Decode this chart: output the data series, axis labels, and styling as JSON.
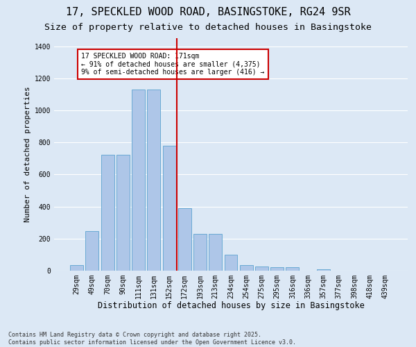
{
  "title1": "17, SPECKLED WOOD ROAD, BASINGSTOKE, RG24 9SR",
  "title2": "Size of property relative to detached houses in Basingstoke",
  "xlabel": "Distribution of detached houses by size in Basingstoke",
  "ylabel": "Number of detached properties",
  "categories": [
    "29sqm",
    "49sqm",
    "70sqm",
    "90sqm",
    "111sqm",
    "131sqm",
    "152sqm",
    "172sqm",
    "193sqm",
    "213sqm",
    "234sqm",
    "254sqm",
    "275sqm",
    "295sqm",
    "316sqm",
    "336sqm",
    "357sqm",
    "377sqm",
    "398sqm",
    "418sqm",
    "439sqm"
  ],
  "values": [
    35,
    245,
    725,
    725,
    1130,
    1130,
    780,
    390,
    230,
    230,
    100,
    35,
    25,
    20,
    20,
    0,
    10,
    0,
    0,
    0,
    0
  ],
  "bar_color": "#aec6e8",
  "bar_edge_color": "#6aaad4",
  "background_color": "#dce8f5",
  "vline_index": 7,
  "vline_color": "#cc0000",
  "annotation_text": "17 SPECKLED WOOD ROAD: 171sqm\n← 91% of detached houses are smaller (4,375)\n9% of semi-detached houses are larger (416) →",
  "annotation_box_color": "#cc0000",
  "annotation_text_color": "#000000",
  "footer_text": "Contains HM Land Registry data © Crown copyright and database right 2025.\nContains public sector information licensed under the Open Government Licence v3.0.",
  "ylim": [
    0,
    1450
  ],
  "yticks": [
    0,
    200,
    400,
    600,
    800,
    1000,
    1200,
    1400
  ],
  "grid_color": "#ffffff",
  "title1_fontsize": 11,
  "title2_fontsize": 9.5,
  "xlabel_fontsize": 8.5,
  "ylabel_fontsize": 8,
  "tick_fontsize": 7,
  "footer_fontsize": 6,
  "annotation_fontsize": 7
}
